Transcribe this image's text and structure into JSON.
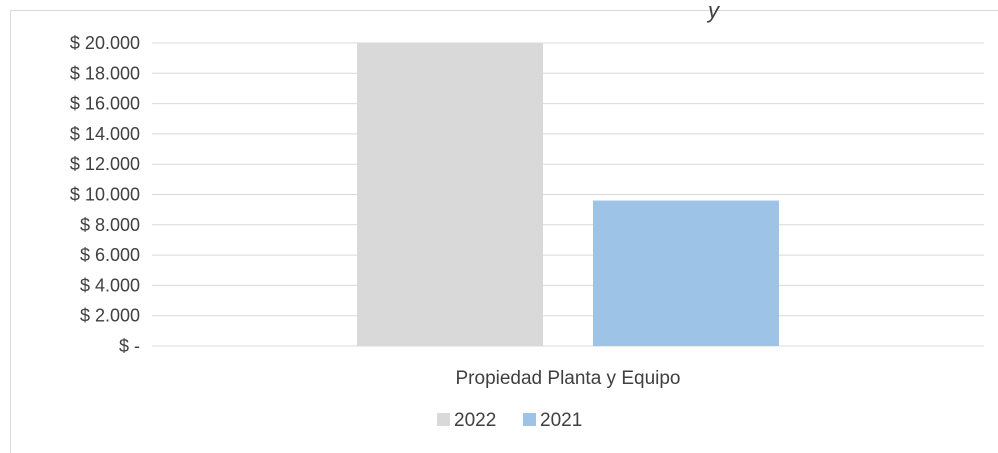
{
  "chart_data": {
    "type": "bar",
    "title": "",
    "title_fragment": "y",
    "categories": [
      "Propiedad Planta y Equipo"
    ],
    "series": [
      {
        "name": "2022",
        "values": [
          20000
        ],
        "color": "#d9d9d9"
      },
      {
        "name": "2021",
        "values": [
          9600
        ],
        "color": "#9dc3e6"
      }
    ],
    "ylim": [
      0,
      20000
    ],
    "y_ticks": [
      {
        "value": 0,
        "label": "$ -"
      },
      {
        "value": 2000,
        "label": "$ 2.000"
      },
      {
        "value": 4000,
        "label": "$ 4.000"
      },
      {
        "value": 6000,
        "label": "$ 6.000"
      },
      {
        "value": 8000,
        "label": "$ 8.000"
      },
      {
        "value": 10000,
        "label": "$ 10.000"
      },
      {
        "value": 12000,
        "label": "$ 12.000"
      },
      {
        "value": 14000,
        "label": "$ 14.000"
      },
      {
        "value": 16000,
        "label": "$ 16.000"
      },
      {
        "value": 18000,
        "label": "$ 18.000"
      },
      {
        "value": 20000,
        "label": "$ 20.000"
      }
    ],
    "grid": true,
    "legend": "bottom"
  }
}
